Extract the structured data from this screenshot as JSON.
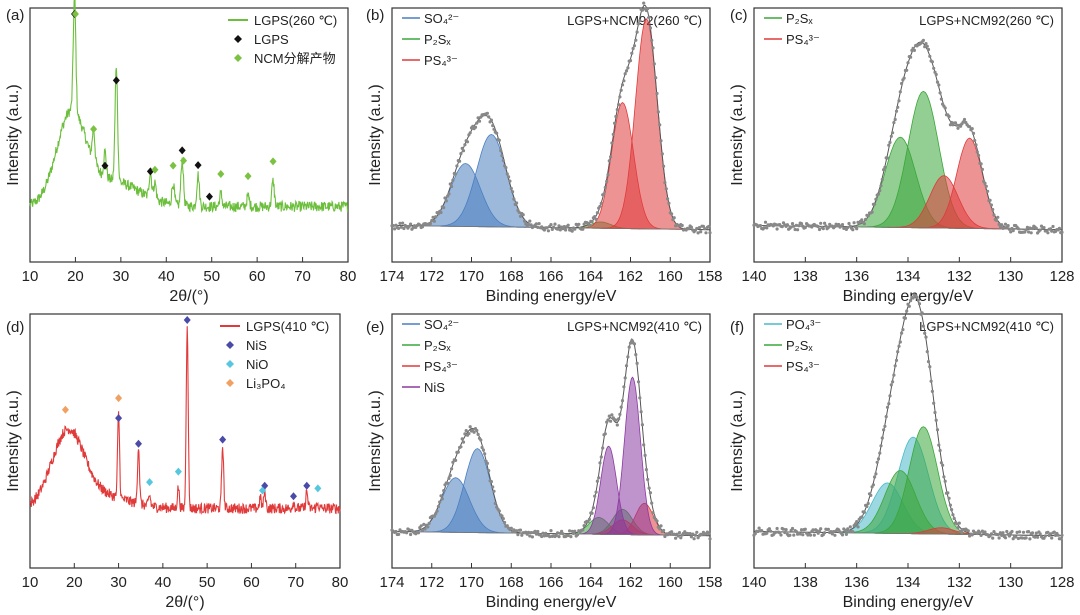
{
  "figure": {
    "colors": {
      "green_pattern": "#6cbf3c",
      "red_pattern": "#e03a3a",
      "lgps_marker": "#111111",
      "ncm_marker": "#7cc242",
      "nis_marker": "#4a4aa8",
      "nio_marker": "#55c8e0",
      "li3po4_marker": "#f0a060",
      "so4": "#4a7fc0",
      "p2sx": "#3aa63a",
      "ps4": "#e03a3a",
      "nis": "#8a3aa0",
      "po4": "#4ab8c8",
      "raw": "#888888",
      "envelope": "#555555"
    }
  },
  "chart_data": [
    {
      "panel": "(a)",
      "type": "line",
      "xlabel": "2θ/(°)",
      "ylabel": "Intensity (a.u.)",
      "xlim": [
        10,
        80
      ],
      "xticks": [
        "10",
        "20",
        "30",
        "40",
        "50",
        "60",
        "70",
        "80"
      ],
      "legend": {
        "placement": "top-right",
        "entries": [
          "LGPS(260 ℃)",
          "LGPS",
          "NCM分解产物"
        ]
      },
      "series": [
        {
          "name": "LGPS(260 ℃)",
          "color": "#6cbf3c",
          "peaks": [
            [
              19.8,
              0.55
            ],
            [
              24,
              0.15
            ],
            [
              26.5,
              0.12
            ],
            [
              29,
              0.55
            ],
            [
              36.5,
              0.12
            ],
            [
              37.5,
              0.08
            ],
            [
              41.5,
              0.1
            ],
            [
              43.5,
              0.22
            ],
            [
              47,
              0.15
            ],
            [
              52,
              0.06
            ],
            [
              58,
              0.05
            ],
            [
              63.5,
              0.12
            ]
          ]
        }
      ],
      "markers": [
        {
          "name": "LGPS",
          "symbol": "diamond",
          "positions": [
            19.8,
            26.5,
            29,
            36.5,
            43.5,
            47,
            49.5
          ]
        },
        {
          "name": "NCM分解产物",
          "symbol": "diamond",
          "positions": [
            20,
            24,
            37.5,
            41.5,
            43.8,
            52,
            58,
            63.5
          ]
        }
      ]
    },
    {
      "panel": "(b)",
      "type": "line",
      "title": "LGPS+NCM92(260 ℃)",
      "xlabel": "Binding energy/eV",
      "ylabel": "Intensity (a.u.)",
      "xlim": [
        174,
        158
      ],
      "xticks": [
        "174",
        "172",
        "170",
        "168",
        "166",
        "164",
        "162",
        "160",
        "158"
      ],
      "legend": {
        "placement": "top-left",
        "entries": [
          "SO₄²⁻",
          "P₂Sₓ",
          "PS₄³⁻"
        ]
      },
      "components": [
        {
          "name": "SO₄²⁻",
          "center": 170.3,
          "height": 0.3,
          "width": 0.75
        },
        {
          "name": "SO₄²⁻",
          "center": 169.0,
          "height": 0.44,
          "width": 0.75
        },
        {
          "name": "P₂Sₓ",
          "center": 163.5,
          "height": 0.03,
          "width": 0.5
        },
        {
          "name": "PS₄³⁻",
          "center": 162.4,
          "height": 0.6,
          "width": 0.55
        },
        {
          "name": "PS₄³⁻",
          "center": 161.2,
          "height": 1.0,
          "width": 0.55
        }
      ]
    },
    {
      "panel": "(c)",
      "type": "line",
      "title": "LGPS+NCM92(260 ℃)",
      "xlabel": "Binding energy/eV",
      "ylabel": "Intensity (a.u.)",
      "xlim": [
        140,
        128
      ],
      "xticks": [
        "140",
        "138",
        "136",
        "134",
        "132",
        "130",
        "128"
      ],
      "legend": {
        "placement": "top-left",
        "entries": [
          "P₂Sₓ",
          "PS₄³⁻"
        ]
      },
      "components": [
        {
          "name": "P₂Sₓ",
          "center": 134.3,
          "height": 0.43,
          "width": 0.6
        },
        {
          "name": "P₂Sₓ",
          "center": 133.4,
          "height": 0.65,
          "width": 0.6
        },
        {
          "name": "PS₄³⁻",
          "center": 132.6,
          "height": 0.25,
          "width": 0.55
        },
        {
          "name": "PS₄³⁻",
          "center": 131.6,
          "height": 0.43,
          "width": 0.5
        }
      ]
    },
    {
      "panel": "(d)",
      "type": "line",
      "xlabel": "2θ/(°)",
      "ylabel": "Intensity (a.u.)",
      "xlim": [
        10,
        80
      ],
      "xticks": [
        "10",
        "20",
        "30",
        "40",
        "50",
        "60",
        "70",
        "80"
      ],
      "legend": {
        "placement": "top-right",
        "entries": [
          "LGPS(410 ℃)",
          "NiS",
          "NiO",
          "Li₃PO₄"
        ]
      },
      "series": [
        {
          "name": "LGPS(410 ℃)",
          "color": "#e03a3a",
          "peaks": [
            [
              30,
              0.4
            ],
            [
              34.5,
              0.28
            ],
            [
              37,
              0.05
            ],
            [
              43.5,
              0.1
            ],
            [
              45.5,
              0.88
            ],
            [
              53.5,
              0.3
            ],
            [
              62,
              0.05
            ],
            [
              63,
              0.08
            ],
            [
              69.5,
              0.03
            ],
            [
              72.5,
              0.08
            ],
            [
              75,
              0.02
            ]
          ]
        }
      ],
      "markers": [
        {
          "name": "NiS",
          "symbol": "diamond",
          "positions": [
            30,
            34.5,
            45.5,
            53.5,
            63,
            69.5,
            72.5
          ]
        },
        {
          "name": "NiO",
          "symbol": "diamond",
          "positions": [
            37,
            43.5,
            62.5,
            75
          ]
        },
        {
          "name": "Li₃PO₄",
          "symbol": "diamond",
          "positions": [
            18,
            30
          ]
        }
      ]
    },
    {
      "panel": "(e)",
      "type": "line",
      "title": "LGPS+NCM92(410 ℃)",
      "xlabel": "Binding energy/eV",
      "ylabel": "Intensity (a.u.)",
      "xlim": [
        174,
        158
      ],
      "xticks": [
        "174",
        "172",
        "170",
        "168",
        "166",
        "164",
        "162",
        "160",
        "158"
      ],
      "legend": {
        "placement": "top-left",
        "entries": [
          "SO₄²⁻",
          "P₂Sₓ",
          "PS₄³⁻",
          "NiS"
        ]
      },
      "components": [
        {
          "name": "SO₄²⁻",
          "center": 170.8,
          "height": 0.26,
          "width": 0.7
        },
        {
          "name": "SO₄²⁻",
          "center": 169.7,
          "height": 0.4,
          "width": 0.65
        },
        {
          "name": "P₂Sₓ",
          "center": 163.6,
          "height": 0.08,
          "width": 0.5
        },
        {
          "name": "P₂Sₓ",
          "center": 162.4,
          "height": 0.12,
          "width": 0.5
        },
        {
          "name": "PS₄³⁻",
          "center": 162.4,
          "height": 0.07,
          "width": 0.5
        },
        {
          "name": "PS₄³⁻",
          "center": 161.3,
          "height": 0.15,
          "width": 0.45
        },
        {
          "name": "NiS",
          "center": 163.1,
          "height": 0.42,
          "width": 0.4
        },
        {
          "name": "NiS",
          "center": 161.9,
          "height": 0.75,
          "width": 0.4
        }
      ]
    },
    {
      "panel": "(f)",
      "type": "line",
      "title": "LGPS+NCM92(410 ℃)",
      "xlabel": "Binding energy/eV",
      "ylabel": "Intensity (a.u.)",
      "xlim": [
        140,
        128
      ],
      "xticks": [
        "140",
        "138",
        "136",
        "134",
        "132",
        "130",
        "128"
      ],
      "legend": {
        "placement": "top-left",
        "entries": [
          "PO₄³⁻",
          "P₂Sₓ",
          "PS₄³⁻"
        ]
      },
      "components": [
        {
          "name": "PO₄³⁻",
          "center": 134.8,
          "height": 0.24,
          "width": 0.6
        },
        {
          "name": "PO₄³⁻",
          "center": 133.8,
          "height": 0.46,
          "width": 0.6
        },
        {
          "name": "P₂Sₓ",
          "center": 134.3,
          "height": 0.3,
          "width": 0.6
        },
        {
          "name": "P₂Sₓ",
          "center": 133.4,
          "height": 0.51,
          "width": 0.55
        },
        {
          "name": "PS₄³⁻",
          "center": 132.7,
          "height": 0.03,
          "width": 0.5
        }
      ]
    }
  ]
}
